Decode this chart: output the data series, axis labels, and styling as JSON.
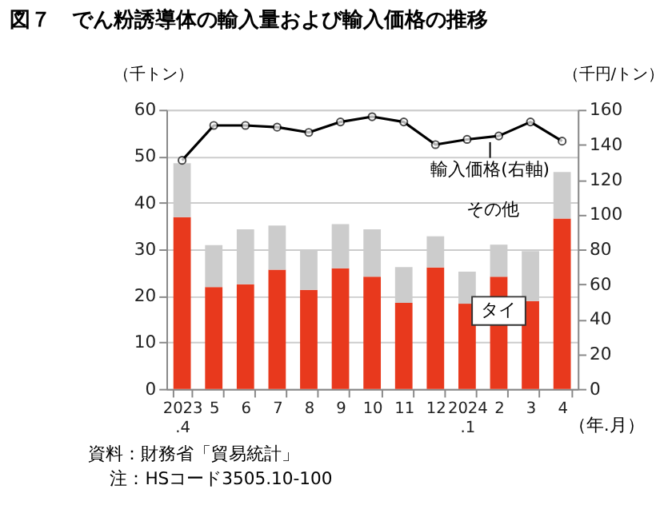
{
  "chart_data": {
    "type": "bar",
    "title": "図７　でん粉誘導体の輸入量および輸入価格の推移",
    "ylabel": "（千トン）",
    "y2label": "（千円/トン）",
    "xlabel": "（年.月）",
    "categories": [
      "2023\n.4",
      "5",
      "6",
      "7",
      "8",
      "9",
      "10",
      "11",
      "12",
      "2024\n.1",
      "2",
      "3",
      "4"
    ],
    "stacked": true,
    "series": [
      {
        "name": "タイ",
        "color": "#e8391d",
        "values": [
          36.9,
          21.9,
          22.5,
          25.6,
          21.3,
          25.9,
          24.1,
          18.5,
          26.1,
          18.3,
          24.1,
          18.9,
          36.6
        ]
      },
      {
        "name": "その他",
        "color": "#cccccc",
        "values": [
          11.6,
          9.0,
          11.8,
          9.5,
          8.4,
          9.5,
          10.2,
          7.7,
          6.7,
          6.9,
          6.9,
          10.7,
          10.0
        ]
      },
      {
        "name": "輸入価格(右軸)",
        "type": "line",
        "axis": "y2",
        "color": "#000000",
        "values": [
          131,
          151,
          151,
          150,
          147,
          153,
          156,
          153,
          140,
          143,
          145,
          153,
          142
        ]
      }
    ],
    "ylim": [
      0,
      60
    ],
    "yticks": [
      0,
      10,
      20,
      30,
      40,
      50,
      60
    ],
    "y2lim": [
      0,
      160
    ],
    "y2ticks": [
      0,
      20,
      40,
      60,
      80,
      100,
      120,
      140,
      160
    ],
    "grid": "y",
    "marker": "circle",
    "line_style": "solid",
    "annotations": [
      "資料：財務省「貿易統計」",
      "注：HSコード3505.10-100"
    ]
  }
}
